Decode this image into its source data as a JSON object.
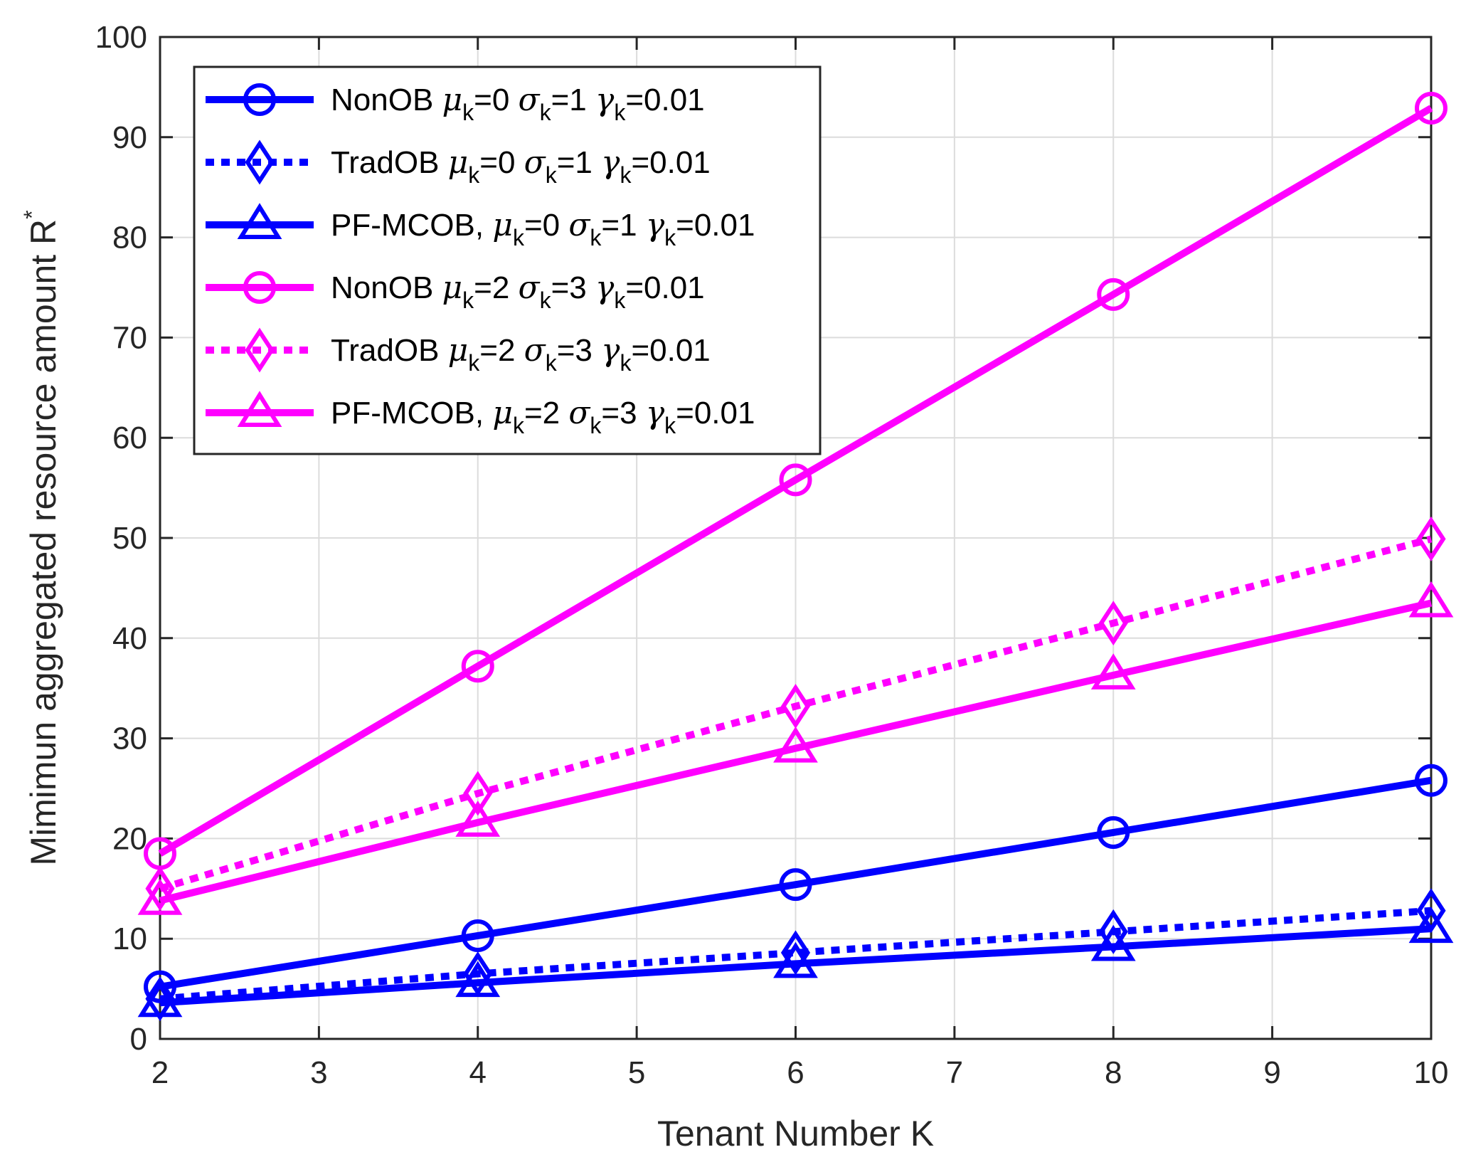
{
  "chart_data": {
    "type": "line",
    "title": "",
    "xlabel": "Tenant Number K",
    "ylabel": "Mimimun aggregated resource amount R",
    "ylabel_sup": "*",
    "xlim": [
      2,
      10
    ],
    "ylim": [
      0,
      100
    ],
    "xticks": [
      2,
      3,
      4,
      5,
      6,
      7,
      8,
      9,
      10
    ],
    "yticks": [
      0,
      10,
      20,
      30,
      40,
      50,
      60,
      70,
      80,
      90,
      100
    ],
    "grid": true,
    "legend_position": "top-left",
    "x": [
      2,
      4,
      6,
      8,
      10
    ],
    "series": [
      {
        "name": "NonOB μk=0 σk=1 γk=0.01",
        "label": {
          "prefix": "NonOB ",
          "mu": "0",
          "sigma": "1",
          "gamma": "0.01"
        },
        "color": "#0000ff",
        "marker": "circle",
        "dash": "solid",
        "values": [
          5.2,
          10.3,
          15.4,
          20.6,
          25.8
        ]
      },
      {
        "name": "TradOB μk=0 σk=1 γk=0.01",
        "label": {
          "prefix": "TradOB ",
          "mu": "0",
          "sigma": "1",
          "gamma": "0.01"
        },
        "color": "#0000ff",
        "marker": "diamond",
        "dash": "dotted",
        "values": [
          4.0,
          6.5,
          8.6,
          10.7,
          12.8
        ]
      },
      {
        "name": "PF-MCOB, μk=0 σk=1 γk=0.01",
        "label": {
          "prefix": "PF-MCOB, ",
          "mu": "0",
          "sigma": "1",
          "gamma": "0.01"
        },
        "color": "#0000ff",
        "marker": "triangle",
        "dash": "solid",
        "values": [
          3.6,
          5.6,
          7.5,
          9.2,
          11.0
        ]
      },
      {
        "name": "NonOB μk=2 σk=3 γk=0.01",
        "label": {
          "prefix": "NonOB ",
          "mu": "2",
          "sigma": "3",
          "gamma": "0.01"
        },
        "color": "#ff00ff",
        "marker": "circle",
        "dash": "solid",
        "values": [
          18.5,
          37.2,
          55.8,
          74.3,
          92.9
        ]
      },
      {
        "name": "TradOB μk=2 σk=3 γk=0.01",
        "label": {
          "prefix": "TradOB ",
          "mu": "2",
          "sigma": "3",
          "gamma": "0.01"
        },
        "color": "#ff00ff",
        "marker": "diamond",
        "dash": "dotted",
        "values": [
          15.0,
          24.5,
          33.2,
          41.5,
          49.9
        ]
      },
      {
        "name": "PF-MCOB, μk=2 σk=3 γk=0.01",
        "label": {
          "prefix": "PF-MCOB, ",
          "mu": "2",
          "sigma": "3",
          "gamma": "0.01"
        },
        "color": "#ff00ff",
        "marker": "triangle",
        "dash": "solid",
        "values": [
          13.8,
          21.6,
          29.0,
          36.3,
          43.5
        ]
      }
    ]
  }
}
